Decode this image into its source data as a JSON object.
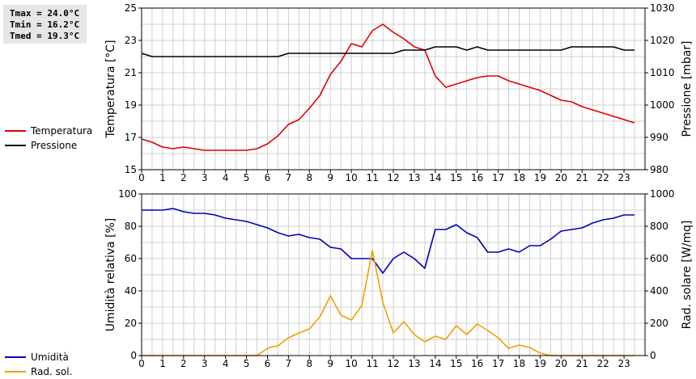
{
  "stats": {
    "tmax": "Tmax = 24.0°C",
    "tmin": "Tmin = 16.2°C",
    "tmed": "Tmed = 19.3°C"
  },
  "colors": {
    "temperature": "#dd0000",
    "pressure": "#000000",
    "humidity": "#0000bb",
    "radiation": "#f0a000",
    "grid": "#cfcfcf"
  },
  "chart_data": [
    {
      "type": "line",
      "xlabel": "",
      "xlim": [
        0,
        24
      ],
      "xticks": [
        0,
        1,
        2,
        3,
        4,
        5,
        6,
        7,
        8,
        9,
        10,
        11,
        12,
        13,
        14,
        15,
        16,
        17,
        18,
        19,
        20,
        21,
        22,
        23
      ],
      "grid": true,
      "legend": "left",
      "left_axis": {
        "label": "Temperatura [°C]",
        "lim": [
          15,
          25
        ],
        "ticks": [
          15,
          17,
          19,
          21,
          23,
          25
        ]
      },
      "right_axis": {
        "label": "Pressione [mbar]",
        "lim": [
          980,
          1030
        ],
        "ticks": [
          980,
          990,
          1000,
          1010,
          1020,
          1030
        ]
      },
      "series": [
        {
          "name": "Temperatura",
          "axis": "left",
          "x": [
            0,
            0.5,
            1,
            1.5,
            2,
            2.5,
            3,
            3.5,
            4,
            4.5,
            5,
            5.5,
            6,
            6.5,
            7,
            7.5,
            8,
            8.5,
            9,
            9.5,
            10,
            10.5,
            11,
            11.5,
            12,
            12.5,
            13,
            13.5,
            14,
            14.5,
            15,
            15.5,
            16,
            16.5,
            17,
            17.5,
            18,
            18.5,
            19,
            19.5,
            20,
            20.5,
            21,
            21.5,
            22,
            22.5,
            23,
            23.5
          ],
          "y": [
            16.9,
            16.7,
            16.4,
            16.3,
            16.4,
            16.3,
            16.2,
            16.2,
            16.2,
            16.2,
            16.2,
            16.3,
            16.6,
            17.1,
            17.8,
            18.1,
            18.8,
            19.6,
            20.9,
            21.7,
            22.8,
            22.6,
            23.6,
            24.0,
            23.5,
            23.1,
            22.6,
            22.4,
            20.8,
            20.1,
            20.3,
            20.5,
            20.7,
            20.8,
            20.8,
            20.5,
            20.3,
            20.1,
            19.9,
            19.6,
            19.3,
            19.2,
            18.9,
            18.7,
            18.5,
            18.3,
            18.1,
            17.9
          ]
        },
        {
          "name": "Pressione",
          "axis": "right",
          "x": [
            0,
            0.5,
            1,
            1.5,
            2,
            2.5,
            3,
            3.5,
            4,
            4.5,
            5,
            5.5,
            6,
            6.5,
            7,
            7.5,
            8,
            8.5,
            9,
            9.5,
            10,
            10.5,
            11,
            11.5,
            12,
            12.5,
            13,
            13.5,
            14,
            14.5,
            15,
            15.5,
            16,
            16.5,
            17,
            17.5,
            18,
            18.5,
            19,
            19.5,
            20,
            20.5,
            21,
            21.5,
            22,
            22.5,
            23,
            23.5
          ],
          "y": [
            1016,
            1015,
            1015,
            1015,
            1015,
            1015,
            1015,
            1015,
            1015,
            1015,
            1015,
            1015,
            1015,
            1015,
            1016,
            1016,
            1016,
            1016,
            1016,
            1016,
            1016,
            1016,
            1016,
            1016,
            1016,
            1017,
            1017,
            1017,
            1018,
            1018,
            1018,
            1017,
            1018,
            1017,
            1017,
            1017,
            1017,
            1017,
            1017,
            1017,
            1017,
            1018,
            1018,
            1018,
            1018,
            1018,
            1017,
            1017
          ]
        }
      ]
    },
    {
      "type": "line",
      "xlabel": "",
      "xlim": [
        0,
        24
      ],
      "xticks": [
        0,
        1,
        2,
        3,
        4,
        5,
        6,
        7,
        8,
        9,
        10,
        11,
        12,
        13,
        14,
        15,
        16,
        17,
        18,
        19,
        20,
        21,
        22,
        23
      ],
      "grid": true,
      "legend": "left",
      "left_axis": {
        "label": "Umidità relativa [%]",
        "lim": [
          0,
          100
        ],
        "ticks": [
          0,
          20,
          40,
          60,
          80,
          100
        ]
      },
      "right_axis": {
        "label": "Rad. solare [W/mq]",
        "lim": [
          0,
          1000
        ],
        "ticks": [
          0,
          200,
          400,
          600,
          800,
          1000
        ]
      },
      "series": [
        {
          "name": "Umidità",
          "axis": "left",
          "x": [
            0,
            0.5,
            1,
            1.5,
            2,
            2.5,
            3,
            3.5,
            4,
            4.5,
            5,
            5.5,
            6,
            6.5,
            7,
            7.5,
            8,
            8.5,
            9,
            9.5,
            10,
            10.5,
            11,
            11.5,
            12,
            12.5,
            13,
            13.5,
            14,
            14.5,
            15,
            15.5,
            16,
            16.5,
            17,
            17.5,
            18,
            18.5,
            19,
            19.5,
            20,
            20.5,
            21,
            21.5,
            22,
            22.5,
            23,
            23.5
          ],
          "y": [
            90,
            90,
            90,
            91,
            89,
            88,
            88,
            87,
            85,
            84,
            83,
            81,
            79,
            76,
            74,
            75,
            73,
            72,
            67,
            66,
            60,
            60,
            60,
            51,
            60,
            64,
            60,
            54,
            78,
            78,
            81,
            76,
            73,
            64,
            64,
            66,
            64,
            68,
            68,
            72,
            77,
            78,
            79,
            82,
            84,
            85,
            87,
            87
          ]
        },
        {
          "name": "Rad. sol.",
          "axis": "right",
          "x": [
            0,
            0.5,
            1,
            1.5,
            2,
            2.5,
            3,
            3.5,
            4,
            4.5,
            5,
            5.5,
            6,
            6.25,
            6.5,
            7,
            7.5,
            8,
            8.5,
            9,
            9.5,
            10,
            10.5,
            11,
            11.5,
            12,
            12.5,
            13,
            13.5,
            14,
            14.5,
            15,
            15.5,
            16,
            16.5,
            17,
            17.5,
            18,
            18.5,
            19,
            19.5,
            20,
            20.5,
            21,
            21.5,
            22,
            22.5,
            23,
            23.5
          ],
          "y": [
            0,
            0,
            0,
            0,
            0,
            0,
            0,
            0,
            0,
            0,
            0,
            0,
            45,
            55,
            60,
            110,
            140,
            165,
            240,
            370,
            250,
            220,
            310,
            650,
            330,
            140,
            210,
            130,
            85,
            120,
            100,
            185,
            130,
            195,
            155,
            110,
            45,
            65,
            50,
            15,
            0,
            0,
            0,
            0,
            0,
            0,
            0,
            0,
            0
          ]
        }
      ]
    }
  ]
}
